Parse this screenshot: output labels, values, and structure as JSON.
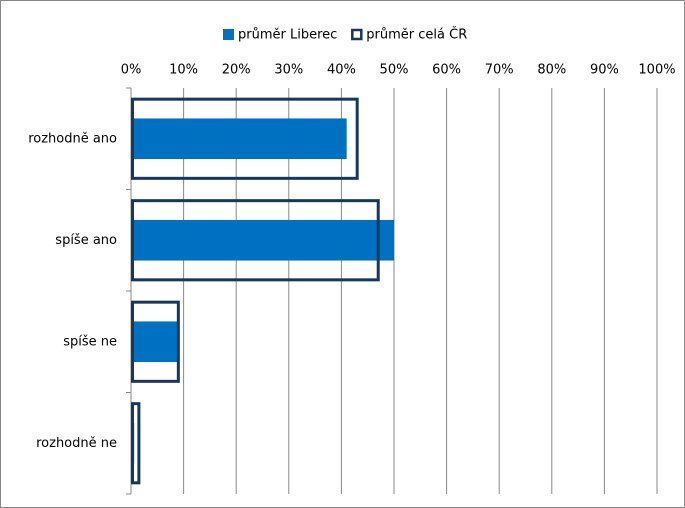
{
  "chart_data": {
    "type": "hbar",
    "categories": [
      "rozhodně ano",
      "spíše ano",
      "spíše ne",
      "rozhodně ne"
    ],
    "series": [
      {
        "name": "průměr Liberec",
        "color": "#0070c0",
        "style": "filled",
        "values": [
          41,
          50,
          9,
          0.6
        ]
      },
      {
        "name": "průměr celá ČR",
        "color": "#17375e",
        "style": "outline",
        "values": [
          43,
          47,
          9,
          1.5
        ]
      }
    ],
    "xlim": [
      0,
      100
    ],
    "xticks": [
      {
        "value": 0,
        "label": "0%"
      },
      {
        "value": 10,
        "label": "10%"
      },
      {
        "value": 20,
        "label": "20%"
      },
      {
        "value": 30,
        "label": "30%"
      },
      {
        "value": 40,
        "label": "40%"
      },
      {
        "value": 50,
        "label": "50%"
      },
      {
        "value": 60,
        "label": "60%"
      },
      {
        "value": 70,
        "label": "70%"
      },
      {
        "value": 80,
        "label": "80%"
      },
      {
        "value": 90,
        "label": "90%"
      },
      {
        "value": 100,
        "label": "100%"
      }
    ],
    "grid": true,
    "legend": "top"
  }
}
